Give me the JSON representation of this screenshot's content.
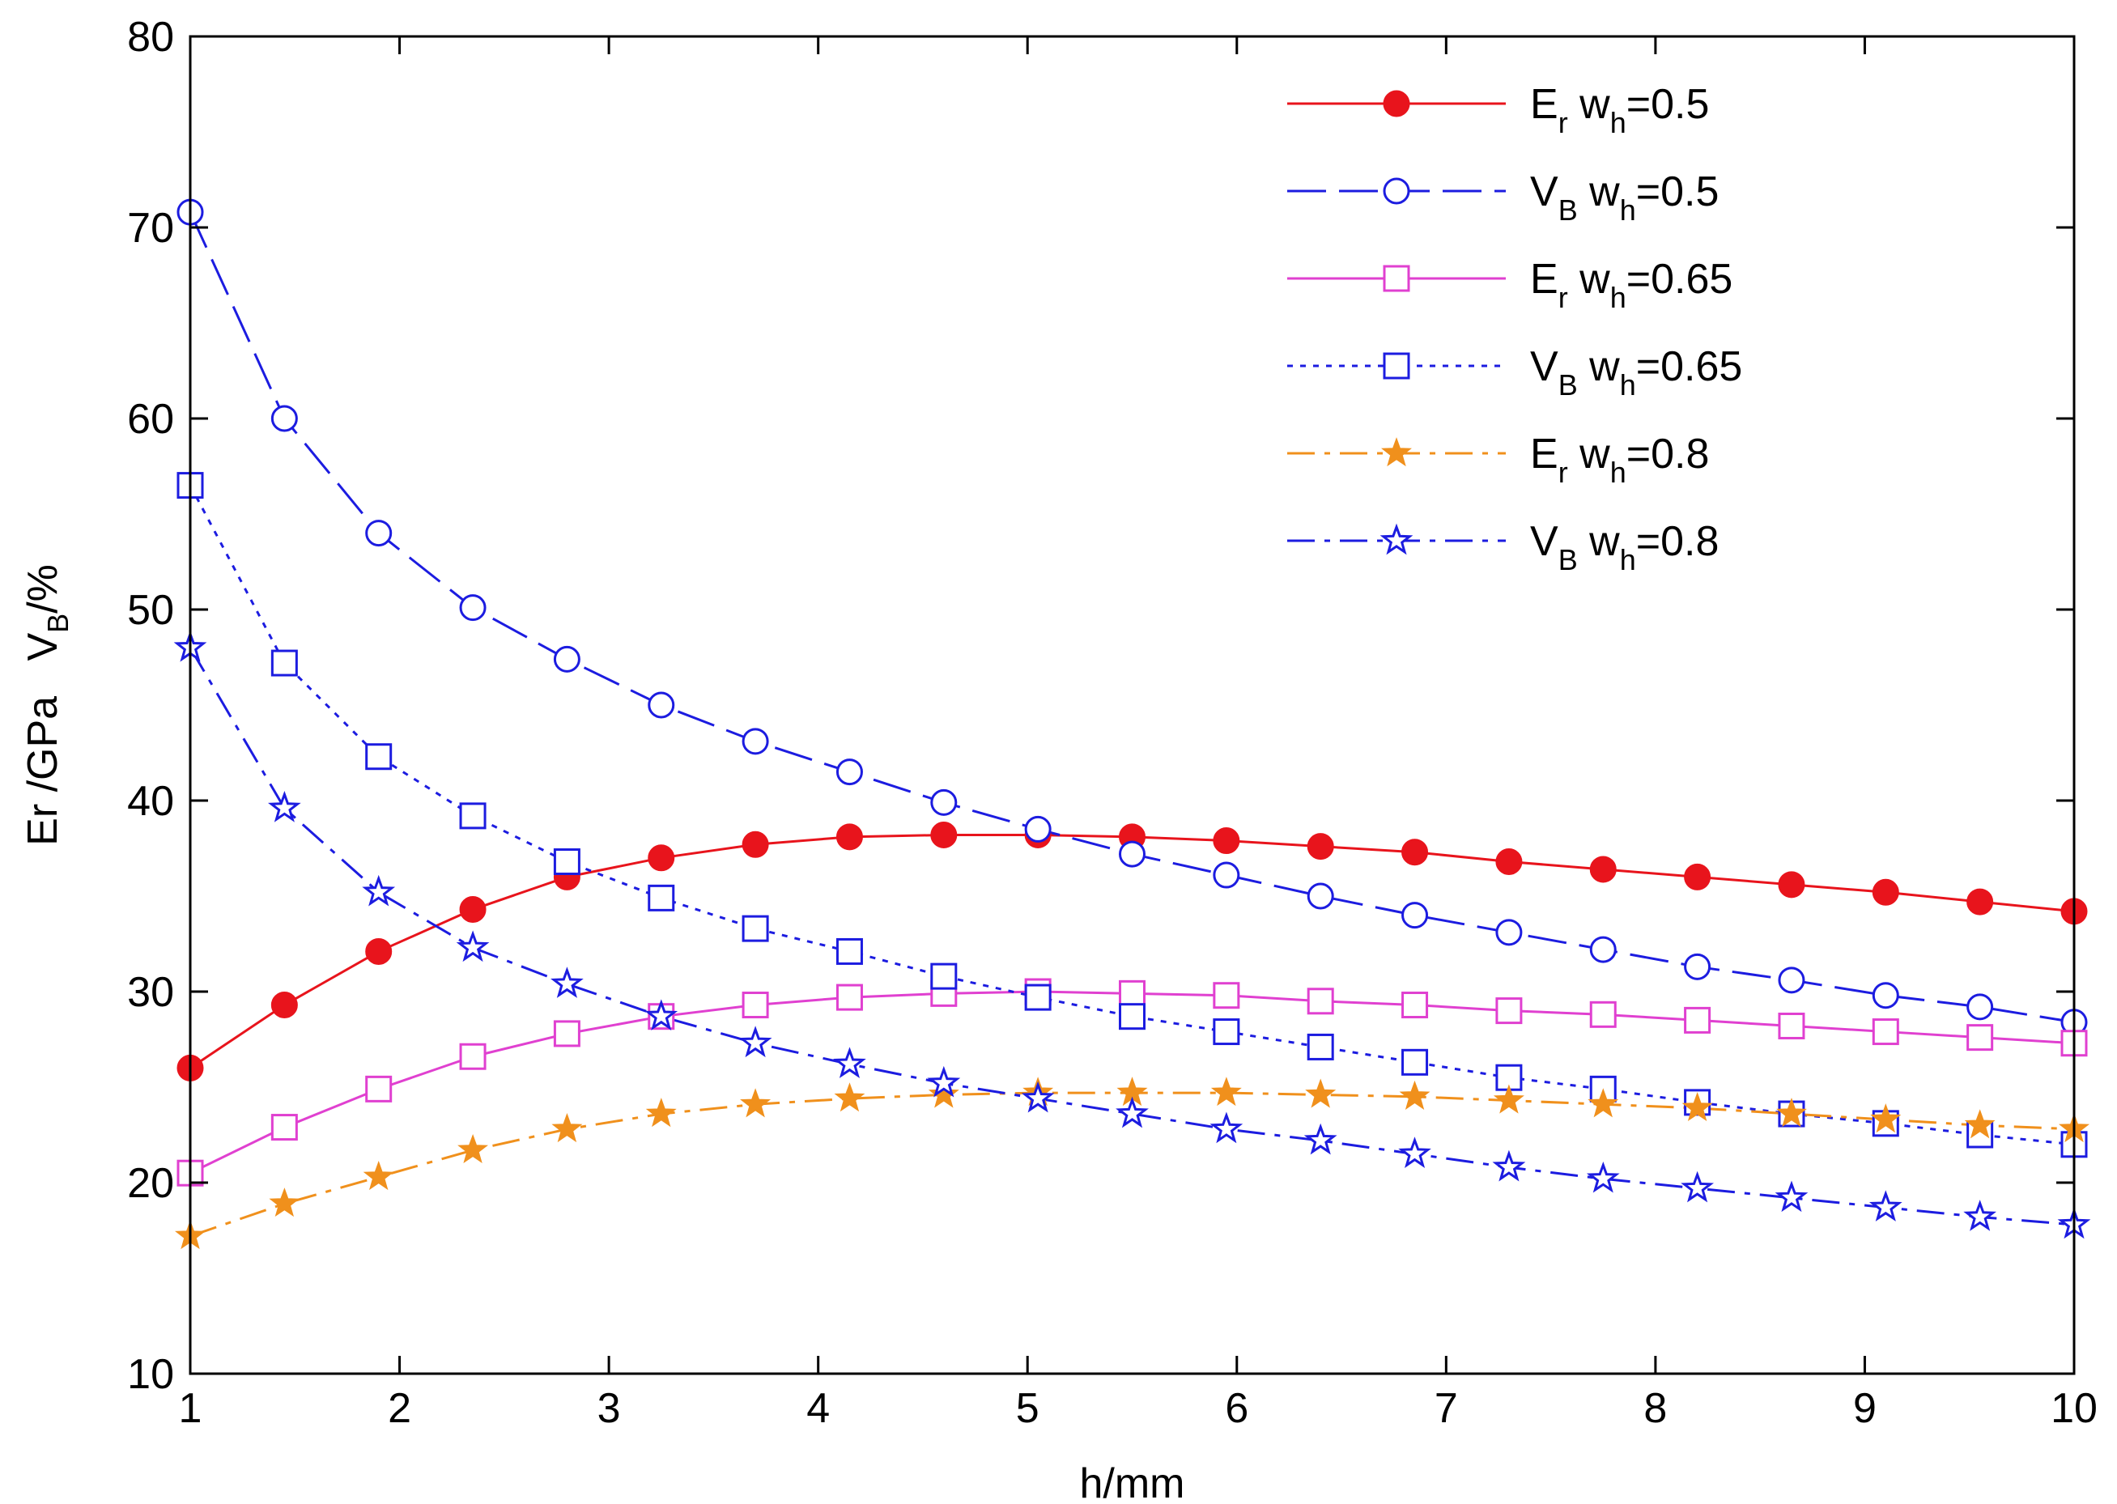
{
  "chart_data": {
    "type": "line",
    "title": "",
    "xlabel": "h/mm",
    "ylabel": "Er /GPa   V",
    "ylabel_sub": "B",
    "ylabel_suffix": "/%",
    "xlim": [
      1,
      10
    ],
    "ylim": [
      10,
      80
    ],
    "xticks": [
      1,
      2,
      3,
      4,
      5,
      6,
      7,
      8,
      9,
      10
    ],
    "yticks": [
      10,
      20,
      30,
      40,
      50,
      60,
      70,
      80
    ],
    "grid": false,
    "legend_position": "top-right",
    "x": [
      1.0,
      1.45,
      1.9,
      2.35,
      2.8,
      3.25,
      3.7,
      4.15,
      4.6,
      5.05,
      5.5,
      5.95,
      6.4,
      6.85,
      7.3,
      7.75,
      8.2,
      8.65,
      9.1,
      9.55,
      10.0
    ],
    "series": [
      {
        "name": "E_r w_h=0.5",
        "label_main": "E",
        "label_sub": "r",
        "label_w": "  w",
        "label_wsub": "h",
        "label_value": "=0.5",
        "color": "#e8141c",
        "dash": "solid",
        "marker": "filled-circle",
        "values": [
          26.0,
          29.3,
          32.1,
          34.3,
          36.0,
          37.0,
          37.7,
          38.1,
          38.2,
          38.2,
          38.1,
          37.9,
          37.6,
          37.3,
          36.8,
          36.4,
          36.0,
          35.6,
          35.2,
          34.7,
          34.2
        ]
      },
      {
        "name": "V_B w_h=0.5",
        "label_main": "V",
        "label_sub": "B",
        "label_w": "  w",
        "label_wsub": "h",
        "label_value": "=0.5",
        "color": "#1c1ce0",
        "dash": "longdash",
        "marker": "open-circle",
        "values": [
          70.8,
          60.0,
          54.0,
          50.1,
          47.4,
          45.0,
          43.1,
          41.5,
          39.9,
          38.5,
          37.2,
          36.1,
          35.0,
          34.0,
          33.1,
          32.2,
          31.3,
          30.6,
          29.8,
          29.2,
          28.4
        ]
      },
      {
        "name": "E_r w_h=0.65",
        "label_main": "E",
        "label_sub": "r",
        "label_w": "  w",
        "label_wsub": "h",
        "label_value": "=0.65",
        "color": "#e040d0",
        "dash": "solid",
        "marker": "open-square",
        "values": [
          20.5,
          22.9,
          24.9,
          26.6,
          27.8,
          28.7,
          29.3,
          29.7,
          29.9,
          30.0,
          29.9,
          29.8,
          29.5,
          29.3,
          29.0,
          28.8,
          28.5,
          28.2,
          27.9,
          27.6,
          27.3
        ]
      },
      {
        "name": "V_B w_h=0.65",
        "label_main": "V",
        "label_sub": "B",
        "label_w": "  w",
        "label_wsub": "h",
        "label_value": "=0.65",
        "color": "#1c1ce0",
        "dash": "dotted",
        "marker": "open-square",
        "values": [
          56.5,
          47.2,
          42.3,
          39.2,
          36.8,
          34.9,
          33.3,
          32.1,
          30.8,
          29.7,
          28.7,
          27.9,
          27.1,
          26.3,
          25.5,
          24.9,
          24.2,
          23.6,
          23.1,
          22.5,
          22.0
        ]
      },
      {
        "name": "E_r w_h=0.8",
        "label_main": "E",
        "label_sub": "r",
        "label_w": "  w",
        "label_wsub": "h",
        "label_value": "=0.8",
        "color": "#f0901c",
        "dash": "dashdot",
        "marker": "filled-star",
        "values": [
          17.2,
          18.9,
          20.3,
          21.7,
          22.8,
          23.6,
          24.1,
          24.4,
          24.6,
          24.7,
          24.7,
          24.7,
          24.6,
          24.5,
          24.3,
          24.1,
          23.9,
          23.6,
          23.3,
          23.0,
          22.8
        ]
      },
      {
        "name": "V_B w_h=0.8",
        "label_main": "V",
        "label_sub": "B",
        "label_w": "  w",
        "label_wsub": "h",
        "label_value": "=0.8",
        "color": "#1c1ce0",
        "dash": "dashdot",
        "marker": "open-star",
        "values": [
          48.0,
          39.6,
          35.2,
          32.3,
          30.4,
          28.7,
          27.3,
          26.2,
          25.2,
          24.4,
          23.6,
          22.8,
          22.2,
          21.5,
          20.8,
          20.2,
          19.7,
          19.2,
          18.7,
          18.2,
          17.8
        ]
      }
    ]
  }
}
